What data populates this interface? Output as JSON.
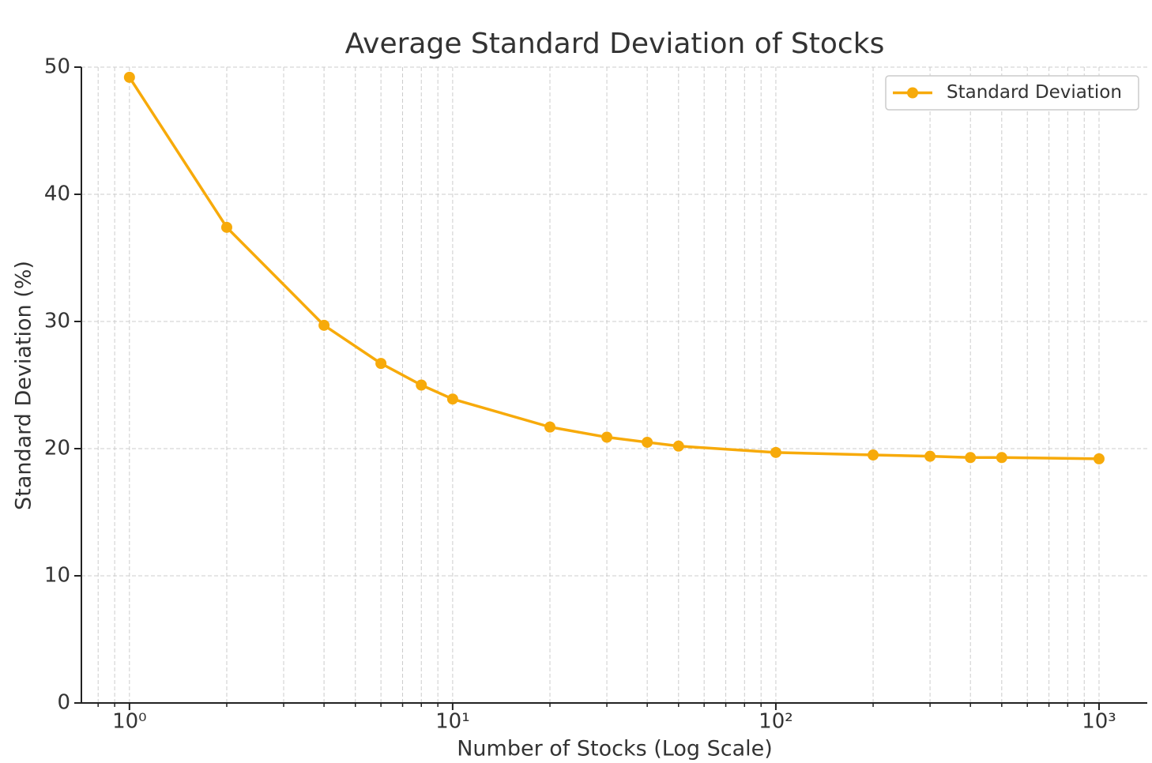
{
  "chart_data": {
    "type": "line",
    "title": "Average Standard Deviation of Stocks",
    "xlabel": "Number of Stocks (Log Scale)",
    "ylabel": "Standard Deviation (%)",
    "xscale": "log",
    "grid": true,
    "legend": "upper right",
    "x": [
      1,
      2,
      4,
      6,
      8,
      10,
      20,
      30,
      40,
      50,
      100,
      200,
      300,
      400,
      500,
      1000
    ],
    "series": [
      {
        "name": "Standard Deviation",
        "color": "#f7aa0a",
        "values": [
          49.2,
          37.4,
          29.7,
          26.7,
          25.0,
          23.9,
          21.7,
          20.9,
          20.5,
          20.2,
          19.7,
          19.5,
          19.4,
          19.3,
          19.3,
          19.2
        ]
      }
    ],
    "xlim": [
      0.71,
      1410
    ],
    "ylim": [
      0,
      50
    ],
    "xticks": [
      {
        "value": 1,
        "label": "10⁰"
      },
      {
        "value": 10,
        "label": "10¹"
      },
      {
        "value": 100,
        "label": "10²"
      },
      {
        "value": 1000,
        "label": "10³"
      }
    ],
    "xminorticks": [
      0.8,
      0.9,
      2,
      3,
      4,
      5,
      6,
      7,
      8,
      9,
      20,
      30,
      40,
      50,
      60,
      70,
      80,
      90,
      200,
      300,
      400,
      500,
      600,
      700,
      800,
      900
    ],
    "yticks": [
      0,
      10,
      20,
      30,
      40,
      50
    ]
  }
}
